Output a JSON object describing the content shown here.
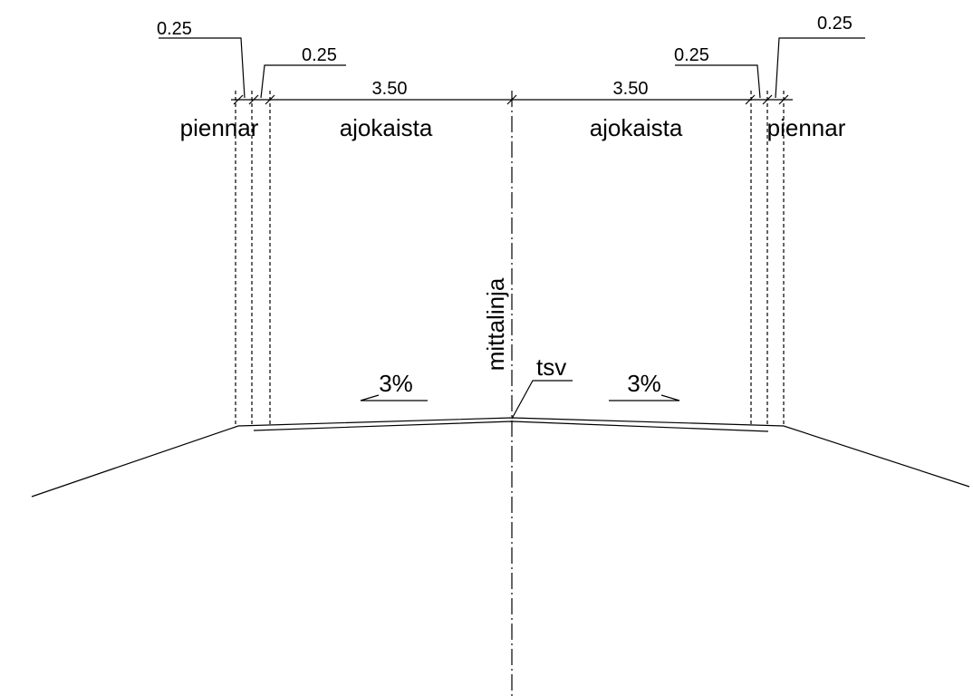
{
  "dimensions": {
    "top_left_shoulder": "0.25",
    "inner_left_shoulder": "0.25",
    "left_lane": "3.50",
    "right_lane": "3.50",
    "inner_right_shoulder": "0.25",
    "top_right_shoulder": "0.25"
  },
  "labels": {
    "left_shoulder": "piennar",
    "left_lane": "ajokaista",
    "right_lane": "ajokaista",
    "right_shoulder": "piennar",
    "centerline": "mittalinja",
    "crown": "tsv"
  },
  "slopes": {
    "left": "3%",
    "right": "3%"
  }
}
